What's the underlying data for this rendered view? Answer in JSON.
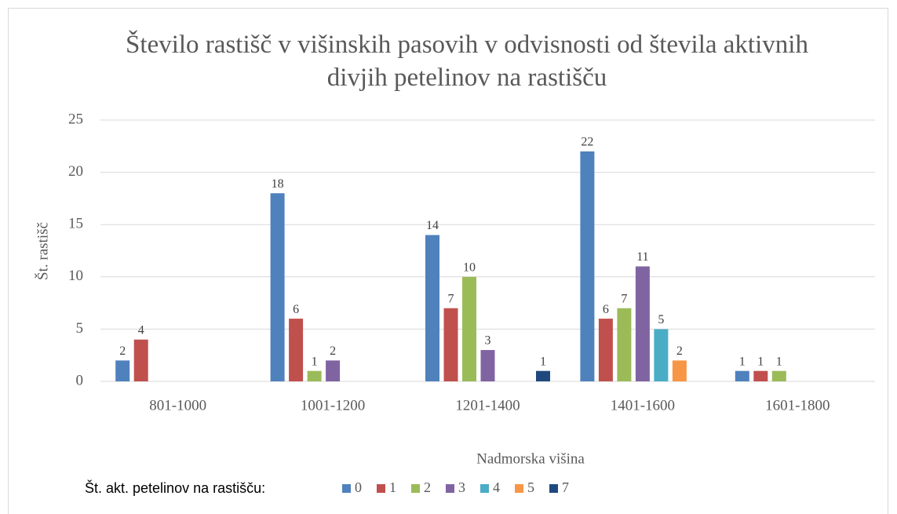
{
  "chart_data": {
    "type": "bar",
    "title": "Število rastišč v višinskih pasovih v odvisnosti od števila aktivnih divjih petelinov na rastišču",
    "x_label": "Nadmorska višina",
    "y_label": "Št. rastišč",
    "legend_title": "Št. akt. petelinov na rastišču:",
    "categories": [
      "801-1000",
      "1001-1200",
      "1201-1400",
      "1401-1600",
      "1601-1800"
    ],
    "series": [
      {
        "name": "0",
        "color": "#4f81bd",
        "values": [
          2,
          18,
          14,
          22,
          1
        ]
      },
      {
        "name": "1",
        "color": "#c0504d",
        "values": [
          4,
          6,
          7,
          6,
          1
        ]
      },
      {
        "name": "2",
        "color": "#9bbb59",
        "values": [
          null,
          1,
          10,
          7,
          1
        ]
      },
      {
        "name": "3",
        "color": "#8064a2",
        "values": [
          null,
          2,
          3,
          11,
          null
        ]
      },
      {
        "name": "4",
        "color": "#4bacc6",
        "values": [
          null,
          null,
          null,
          5,
          null
        ]
      },
      {
        "name": "5",
        "color": "#f79646",
        "values": [
          null,
          null,
          null,
          2,
          null
        ]
      },
      {
        "name": "7",
        "color": "#1f497d",
        "values": [
          null,
          null,
          1,
          null,
          null
        ]
      }
    ],
    "ylim": [
      0,
      25
    ],
    "yticks": [
      0,
      5,
      10,
      15,
      20,
      25
    ],
    "grid": true,
    "legend": "bottom"
  }
}
